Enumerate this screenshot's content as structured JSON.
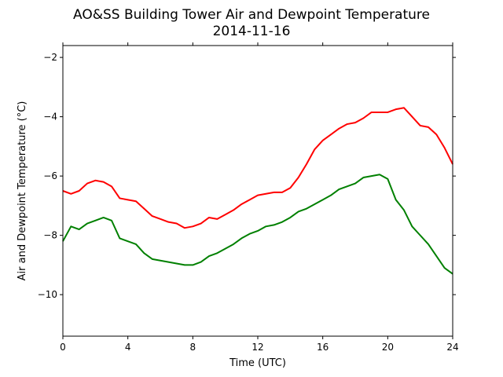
{
  "chart_data": {
    "type": "line",
    "title": "AO&SS Building Tower Air and Dewpoint Temperature",
    "subtitle": "2014-11-16",
    "xlabel": "Time (UTC)",
    "ylabel": "Air and Dewpoint Temperature (°C)",
    "xlim": [
      0,
      24
    ],
    "ylim": [
      -11.4,
      -1.6
    ],
    "x_ticks": [
      0,
      4,
      8,
      12,
      16,
      20,
      24
    ],
    "y_ticks": [
      -10,
      -8,
      -6,
      -4,
      -2
    ],
    "grid": false,
    "series": [
      {
        "color": "#ff0000",
        "x": [
          0,
          0.5,
          1,
          1.5,
          2,
          2.5,
          3,
          3.5,
          4,
          4.5,
          5,
          5.5,
          6,
          6.5,
          7,
          7.5,
          8,
          8.5,
          9,
          9.5,
          10,
          10.5,
          11,
          11.5,
          12,
          12.5,
          13,
          13.5,
          14,
          14.5,
          15,
          15.5,
          16,
          16.5,
          17,
          17.5,
          18,
          18.5,
          19,
          19.5,
          20,
          20.5,
          21,
          21.5,
          22,
          22.5,
          23,
          23.5,
          24
        ],
        "y": [
          -6.5,
          -6.6,
          -6.5,
          -6.25,
          -6.15,
          -6.2,
          -6.35,
          -6.75,
          -6.8,
          -6.85,
          -7.1,
          -7.35,
          -7.45,
          -7.55,
          -7.6,
          -7.75,
          -7.7,
          -7.6,
          -7.4,
          -7.45,
          -7.3,
          -7.15,
          -6.95,
          -6.8,
          -6.65,
          -6.6,
          -6.55,
          -6.55,
          -6.4,
          -6.05,
          -5.6,
          -5.1,
          -4.8,
          -4.6,
          -4.4,
          -4.25,
          -4.2,
          -4.05,
          -3.85,
          -3.85,
          -3.85,
          -3.75,
          -3.7,
          -4.0,
          -4.3,
          -4.35,
          -4.6,
          -5.05,
          -5.6
        ]
      },
      {
        "color": "#008000",
        "x": [
          0,
          0.5,
          1,
          1.5,
          2,
          2.5,
          3,
          3.5,
          4,
          4.5,
          5,
          5.5,
          6,
          6.5,
          7,
          7.5,
          8,
          8.5,
          9,
          9.5,
          10,
          10.5,
          11,
          11.5,
          12,
          12.5,
          13,
          13.5,
          14,
          14.5,
          15,
          15.5,
          16,
          16.5,
          17,
          17.5,
          18,
          18.5,
          19,
          19.5,
          20,
          20.5,
          21,
          21.5,
          22,
          22.5,
          23,
          23.5,
          24
        ],
        "y": [
          -8.2,
          -7.7,
          -7.8,
          -7.6,
          -7.5,
          -7.4,
          -7.5,
          -8.1,
          -8.2,
          -8.3,
          -8.6,
          -8.8,
          -8.85,
          -8.9,
          -8.95,
          -9.0,
          -9.0,
          -8.9,
          -8.7,
          -8.6,
          -8.45,
          -8.3,
          -8.1,
          -7.95,
          -7.85,
          -7.7,
          -7.65,
          -7.55,
          -7.4,
          -7.2,
          -7.1,
          -6.95,
          -6.8,
          -6.65,
          -6.45,
          -6.35,
          -6.25,
          -6.05,
          -6.0,
          -5.95,
          -6.1,
          -6.8,
          -7.15,
          -7.7,
          -8.0,
          -8.3,
          -8.7,
          -9.1,
          -9.3
        ]
      }
    ]
  }
}
